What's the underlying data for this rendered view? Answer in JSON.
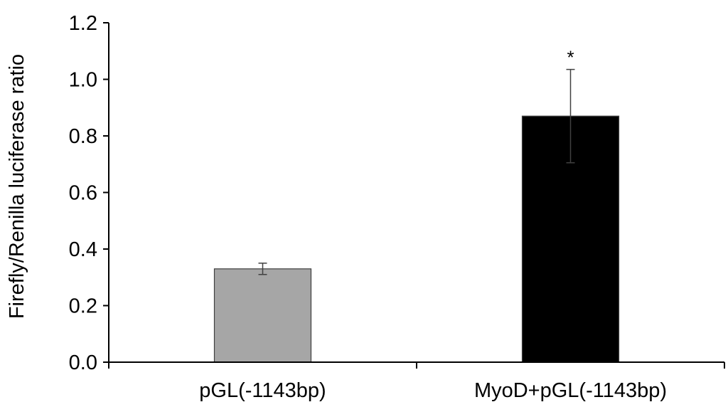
{
  "chart_data": {
    "type": "bar",
    "title": "",
    "xlabel": "",
    "ylabel": "Firefly/Renilla luciferase ratio",
    "ylim": [
      0,
      1.2
    ],
    "yticks": [
      "0.0",
      "0.2",
      "0.4",
      "0.6",
      "0.8",
      "1.0",
      "1.2"
    ],
    "categories": [
      "pGL(-1143bp)",
      "MyoD+pGL(-1143bp)"
    ],
    "values": [
      0.33,
      0.87
    ],
    "errors": [
      0.02,
      0.165
    ],
    "bar_colors": [
      "#a6a6a6",
      "#000000"
    ],
    "annotations": [
      "",
      "*"
    ],
    "grid": false,
    "legend": "none"
  }
}
